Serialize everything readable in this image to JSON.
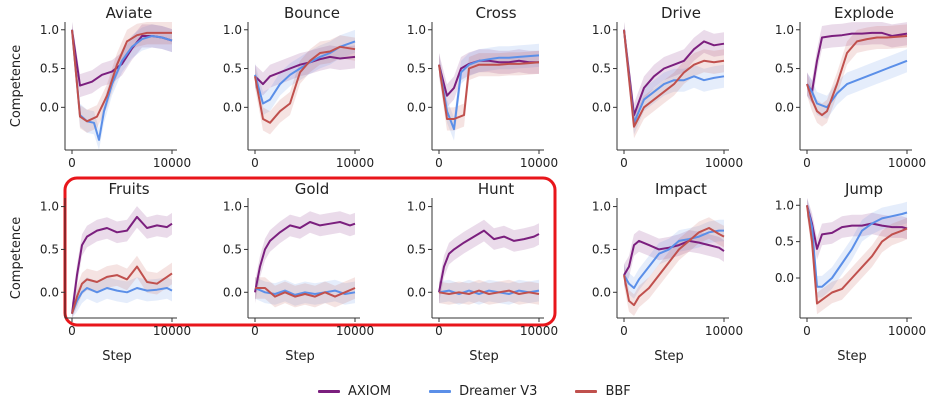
{
  "chart_data": [
    {
      "type": "line",
      "title": "Aviate",
      "ylabel": "Competence",
      "xlabel": "",
      "ticks_y": [
        1.0,
        0.5,
        0.0
      ],
      "ticks_x": [
        0,
        10000
      ],
      "ylim": [
        -0.55,
        1.1
      ],
      "xlim": [
        -700,
        10500
      ],
      "series": [
        {
          "name": "AXIOM",
          "x": [
            0,
            800,
            2000,
            3000,
            4000,
            5000,
            6000,
            7000,
            8000,
            9000,
            10000
          ],
          "y": [
            1.0,
            0.28,
            0.33,
            0.42,
            0.46,
            0.56,
            0.76,
            0.92,
            0.92,
            0.9,
            0.86
          ]
        },
        {
          "name": "Dreamer V3",
          "x": [
            0,
            800,
            1500,
            2200,
            2700,
            3200,
            4000,
            5000,
            6000,
            7000,
            8000,
            9000,
            10000
          ],
          "y": [
            1.0,
            -0.1,
            -0.18,
            -0.2,
            -0.42,
            -0.05,
            0.3,
            0.6,
            0.78,
            0.88,
            0.92,
            0.9,
            0.86
          ]
        },
        {
          "name": "BBF",
          "x": [
            0,
            800,
            1500,
            2500,
            3500,
            4500,
            5500,
            6500,
            7500,
            8500,
            10000
          ],
          "y": [
            1.0,
            -0.12,
            -0.18,
            -0.12,
            0.15,
            0.55,
            0.85,
            0.93,
            0.96,
            0.96,
            0.96
          ]
        }
      ]
    },
    {
      "type": "line",
      "title": "Bounce",
      "ylabel": "",
      "xlabel": "",
      "ticks_y": [
        1.0,
        0.5,
        0.0
      ],
      "ticks_x": [
        0,
        10000
      ],
      "ylim": [
        -0.55,
        1.1
      ],
      "xlim": [
        -700,
        10500
      ],
      "series": [
        {
          "name": "AXIOM",
          "x": [
            0,
            800,
            1500,
            2500,
            3500,
            4500,
            5500,
            6500,
            7500,
            8500,
            10000
          ],
          "y": [
            0.4,
            0.3,
            0.4,
            0.45,
            0.5,
            0.55,
            0.58,
            0.62,
            0.65,
            0.63,
            0.65
          ]
        },
        {
          "name": "Dreamer V3",
          "x": [
            0,
            800,
            1500,
            2500,
            3500,
            4500,
            5500,
            6500,
            7500,
            8500,
            10000
          ],
          "y": [
            0.42,
            0.05,
            0.1,
            0.3,
            0.42,
            0.5,
            0.58,
            0.65,
            0.7,
            0.78,
            0.85
          ]
        },
        {
          "name": "BBF",
          "x": [
            0,
            800,
            1500,
            2500,
            3500,
            4500,
            5500,
            6500,
            7500,
            8500,
            10000
          ],
          "y": [
            0.4,
            -0.15,
            -0.2,
            -0.05,
            0.05,
            0.45,
            0.6,
            0.7,
            0.72,
            0.78,
            0.75
          ]
        }
      ]
    },
    {
      "type": "line",
      "title": "Cross",
      "ylabel": "",
      "xlabel": "",
      "ticks_y": [
        1.0,
        0.5,
        0.0
      ],
      "ticks_x": [
        0,
        10000
      ],
      "ylim": [
        -0.55,
        1.1
      ],
      "xlim": [
        -700,
        10500
      ],
      "series": [
        {
          "name": "AXIOM",
          "x": [
            0,
            800,
            1500,
            2200,
            3000,
            4000,
            5000,
            6000,
            7000,
            8000,
            9000,
            10000
          ],
          "y": [
            0.55,
            0.15,
            0.25,
            0.5,
            0.56,
            0.6,
            0.6,
            0.58,
            0.58,
            0.6,
            0.58,
            0.58
          ]
        },
        {
          "name": "Dreamer V3",
          "x": [
            0,
            800,
            1500,
            2200,
            3000,
            4000,
            5000,
            6000,
            7000,
            8000,
            9000,
            10000
          ],
          "y": [
            0.55,
            -0.05,
            -0.28,
            0.45,
            0.55,
            0.6,
            0.62,
            0.64,
            0.64,
            0.65,
            0.66,
            0.67
          ]
        },
        {
          "name": "BBF",
          "x": [
            0,
            800,
            1500,
            2500,
            3000,
            4000,
            5000,
            6000,
            7000,
            8000,
            9000,
            10000
          ],
          "y": [
            0.55,
            -0.15,
            -0.15,
            -0.1,
            0.5,
            0.55,
            0.55,
            0.55,
            0.56,
            0.56,
            0.57,
            0.58
          ]
        }
      ]
    },
    {
      "type": "line",
      "title": "Drive",
      "ylabel": "",
      "xlabel": "",
      "ticks_y": [
        1.0,
        0.5,
        0.0
      ],
      "ticks_x": [
        0,
        10000
      ],
      "ylim": [
        -0.55,
        1.1
      ],
      "xlim": [
        -700,
        10500
      ],
      "series": [
        {
          "name": "AXIOM",
          "x": [
            0,
            1000,
            2000,
            3000,
            4000,
            5000,
            6000,
            7000,
            8000,
            9000,
            10000
          ],
          "y": [
            1.0,
            -0.1,
            0.25,
            0.4,
            0.5,
            0.55,
            0.6,
            0.75,
            0.85,
            0.8,
            0.82
          ]
        },
        {
          "name": "Dreamer V3",
          "x": [
            0,
            1000,
            2000,
            3000,
            4000,
            5000,
            6000,
            7000,
            8000,
            9000,
            10000
          ],
          "y": [
            1.0,
            -0.2,
            0.1,
            0.2,
            0.3,
            0.35,
            0.35,
            0.4,
            0.35,
            0.38,
            0.4
          ]
        },
        {
          "name": "BBF",
          "x": [
            0,
            1000,
            2000,
            3000,
            4000,
            5000,
            6000,
            7000,
            8000,
            9000,
            10000
          ],
          "y": [
            1.0,
            -0.25,
            0.0,
            0.1,
            0.2,
            0.3,
            0.45,
            0.55,
            0.6,
            0.58,
            0.6
          ]
        }
      ]
    },
    {
      "type": "line",
      "title": "Explode",
      "ylabel": "",
      "xlabel": "",
      "ticks_y": [
        1.0,
        0.5,
        0.0
      ],
      "ticks_x": [
        0,
        10000
      ],
      "ylim": [
        -0.55,
        1.1
      ],
      "xlim": [
        -700,
        10500
      ],
      "series": [
        {
          "name": "AXIOM",
          "x": [
            0,
            500,
            1000,
            1500,
            2500,
            3500,
            4500,
            5500,
            6500,
            7500,
            8500,
            10000
          ],
          "y": [
            0.3,
            0.2,
            0.6,
            0.9,
            0.92,
            0.93,
            0.95,
            0.95,
            0.96,
            0.96,
            0.92,
            0.95
          ]
        },
        {
          "name": "Dreamer V3",
          "x": [
            0,
            500,
            1000,
            2000,
            3000,
            4000,
            5000,
            6000,
            7000,
            8000,
            9000,
            10000
          ],
          "y": [
            0.3,
            0.2,
            0.05,
            0.0,
            0.18,
            0.3,
            0.35,
            0.4,
            0.45,
            0.5,
            0.55,
            0.6
          ]
        },
        {
          "name": "BBF",
          "x": [
            0,
            500,
            1000,
            1500,
            2000,
            3000,
            4000,
            5000,
            6000,
            7000,
            8000,
            10000
          ],
          "y": [
            0.3,
            0.1,
            -0.05,
            -0.1,
            -0.05,
            0.3,
            0.7,
            0.85,
            0.88,
            0.9,
            0.9,
            0.92
          ]
        }
      ]
    },
    {
      "type": "line",
      "title": "Fruits",
      "ylabel": "Competence",
      "xlabel": "Step",
      "ticks_y": [
        1.0,
        0.5,
        0.0
      ],
      "ticks_x": [
        0,
        10000
      ],
      "ylim": [
        -0.3,
        1.1
      ],
      "xlim": [
        -700,
        10500
      ],
      "series": [
        {
          "name": "AXIOM",
          "x": [
            0,
            500,
            1000,
            1500,
            2500,
            3500,
            4500,
            5500,
            6500,
            7500,
            8500,
            9500,
            10000
          ],
          "y": [
            -0.25,
            0.2,
            0.55,
            0.65,
            0.72,
            0.75,
            0.7,
            0.72,
            0.88,
            0.75,
            0.78,
            0.76,
            0.8
          ]
        },
        {
          "name": "Dreamer V3",
          "x": [
            0,
            500,
            1000,
            1500,
            2500,
            3500,
            4500,
            5500,
            6500,
            7500,
            8500,
            9500,
            10000
          ],
          "y": [
            -0.25,
            -0.1,
            0.0,
            0.05,
            0.0,
            0.05,
            0.02,
            0.0,
            0.05,
            0.02,
            0.03,
            0.05,
            0.02
          ]
        },
        {
          "name": "BBF",
          "x": [
            0,
            500,
            1000,
            1500,
            2500,
            3500,
            4500,
            5500,
            6500,
            7500,
            8500,
            9500,
            10000
          ],
          "y": [
            -0.25,
            -0.05,
            0.1,
            0.15,
            0.12,
            0.18,
            0.2,
            0.15,
            0.3,
            0.12,
            0.1,
            0.18,
            0.22
          ]
        }
      ]
    },
    {
      "type": "line",
      "title": "Gold",
      "ylabel": "",
      "xlabel": "Step",
      "ticks_y": [
        1.0,
        0.5,
        0.0
      ],
      "ticks_x": [
        0,
        10000
      ],
      "ylim": [
        -0.3,
        1.1
      ],
      "xlim": [
        -700,
        10500
      ],
      "series": [
        {
          "name": "AXIOM",
          "x": [
            0,
            500,
            1000,
            1500,
            2500,
            3500,
            4500,
            5500,
            6500,
            7500,
            8500,
            9500,
            10000
          ],
          "y": [
            0.0,
            0.3,
            0.5,
            0.6,
            0.7,
            0.78,
            0.75,
            0.82,
            0.78,
            0.8,
            0.82,
            0.78,
            0.8
          ]
        },
        {
          "name": "Dreamer V3",
          "x": [
            0,
            1000,
            2000,
            3000,
            4000,
            5000,
            6000,
            7000,
            8000,
            9000,
            10000
          ],
          "y": [
            0.05,
            0.0,
            -0.02,
            0.02,
            -0.03,
            0.0,
            -0.02,
            0.0,
            0.02,
            -0.02,
            0.0
          ]
        },
        {
          "name": "BBF",
          "x": [
            0,
            1000,
            2000,
            3000,
            4000,
            5000,
            6000,
            7000,
            8000,
            9000,
            10000
          ],
          "y": [
            0.05,
            0.05,
            -0.05,
            0.0,
            -0.05,
            -0.02,
            -0.05,
            0.0,
            -0.05,
            0.0,
            0.05
          ]
        }
      ]
    },
    {
      "type": "line",
      "title": "Hunt",
      "ylabel": "",
      "xlabel": "Step",
      "ticks_y": [
        1.0,
        0.5,
        0.0
      ],
      "ticks_x": [
        0,
        10000
      ],
      "ylim": [
        -0.3,
        1.1
      ],
      "xlim": [
        -700,
        10500
      ],
      "series": [
        {
          "name": "AXIOM",
          "x": [
            0,
            500,
            1000,
            1500,
            2500,
            3500,
            4500,
            5500,
            6500,
            7500,
            8500,
            9500,
            10000
          ],
          "y": [
            0.0,
            0.3,
            0.45,
            0.5,
            0.58,
            0.65,
            0.72,
            0.62,
            0.65,
            0.6,
            0.62,
            0.65,
            0.68
          ]
        },
        {
          "name": "Dreamer V3",
          "x": [
            0,
            1000,
            2000,
            3000,
            4000,
            5000,
            6000,
            7000,
            8000,
            9000,
            10000
          ],
          "y": [
            0.0,
            0.02,
            -0.02,
            0.02,
            -0.02,
            0.02,
            0.0,
            -0.02,
            0.02,
            0.0,
            0.02
          ]
        },
        {
          "name": "BBF",
          "x": [
            0,
            1000,
            2000,
            3000,
            4000,
            5000,
            6000,
            7000,
            8000,
            9000,
            10000
          ],
          "y": [
            0.0,
            -0.02,
            0.0,
            -0.02,
            0.02,
            -0.02,
            0.0,
            0.02,
            -0.02,
            0.0,
            -0.02
          ]
        }
      ]
    },
    {
      "type": "line",
      "title": "Impact",
      "ylabel": "",
      "xlabel": "Step",
      "ticks_y": [
        1.0,
        0.5,
        0.0
      ],
      "ticks_x": [
        0,
        10000
      ],
      "ylim": [
        -0.3,
        1.1
      ],
      "xlim": [
        -700,
        10500
      ],
      "series": [
        {
          "name": "AXIOM",
          "x": [
            0,
            500,
            1000,
            1500,
            2500,
            3500,
            4500,
            5500,
            6500,
            7500,
            8500,
            9500,
            10000
          ],
          "y": [
            0.2,
            0.3,
            0.55,
            0.6,
            0.55,
            0.5,
            0.52,
            0.55,
            0.6,
            0.58,
            0.55,
            0.52,
            0.48
          ]
        },
        {
          "name": "Dreamer V3",
          "x": [
            0,
            500,
            1000,
            1500,
            2500,
            3500,
            4500,
            5500,
            6500,
            7500,
            8500,
            9500,
            10000
          ],
          "y": [
            0.2,
            0.1,
            0.05,
            0.15,
            0.3,
            0.45,
            0.5,
            0.6,
            0.62,
            0.65,
            0.7,
            0.72,
            0.72
          ]
        },
        {
          "name": "BBF",
          "x": [
            0,
            500,
            1000,
            1500,
            2500,
            3500,
            4500,
            5500,
            6500,
            7500,
            8500,
            9500,
            10000
          ],
          "y": [
            0.2,
            -0.1,
            -0.15,
            -0.05,
            0.05,
            0.2,
            0.35,
            0.5,
            0.6,
            0.7,
            0.75,
            0.68,
            0.65
          ]
        }
      ]
    },
    {
      "type": "line",
      "title": "Jump",
      "ylabel": "",
      "xlabel": "Step",
      "ticks_y": [
        1.0,
        0.5,
        0.0
      ],
      "ticks_x": [
        0,
        10000
      ],
      "ylim": [
        -0.55,
        1.1
      ],
      "xlim": [
        -700,
        10500
      ],
      "series": [
        {
          "name": "AXIOM",
          "x": [
            0,
            500,
            1000,
            1500,
            2500,
            3500,
            4500,
            5500,
            6500,
            7500,
            8500,
            9500,
            10000
          ],
          "y": [
            1.0,
            0.75,
            0.4,
            0.6,
            0.62,
            0.7,
            0.72,
            0.72,
            0.75,
            0.72,
            0.7,
            0.7,
            0.68
          ]
        },
        {
          "name": "Dreamer V3",
          "x": [
            0,
            500,
            1000,
            1500,
            2500,
            3500,
            4500,
            5500,
            6500,
            7500,
            8500,
            9500,
            10000
          ],
          "y": [
            1.0,
            0.7,
            -0.12,
            -0.12,
            0.0,
            0.2,
            0.4,
            0.65,
            0.75,
            0.82,
            0.85,
            0.88,
            0.9
          ]
        },
        {
          "name": "BBF",
          "x": [
            0,
            500,
            1000,
            1500,
            2500,
            3500,
            4500,
            5500,
            6500,
            7500,
            8500,
            9500,
            10000
          ],
          "y": [
            1.0,
            0.5,
            -0.35,
            -0.3,
            -0.2,
            -0.15,
            0.0,
            0.15,
            0.3,
            0.5,
            0.6,
            0.65,
            0.68
          ]
        }
      ]
    }
  ],
  "legend": [
    {
      "label": "AXIOM",
      "color": "#7b1f7e"
    },
    {
      "label": "Dreamer V3",
      "color": "#5b8fe8"
    },
    {
      "label": "BBF",
      "color": "#c0504d"
    }
  ],
  "highlight_color": "#e8161b"
}
